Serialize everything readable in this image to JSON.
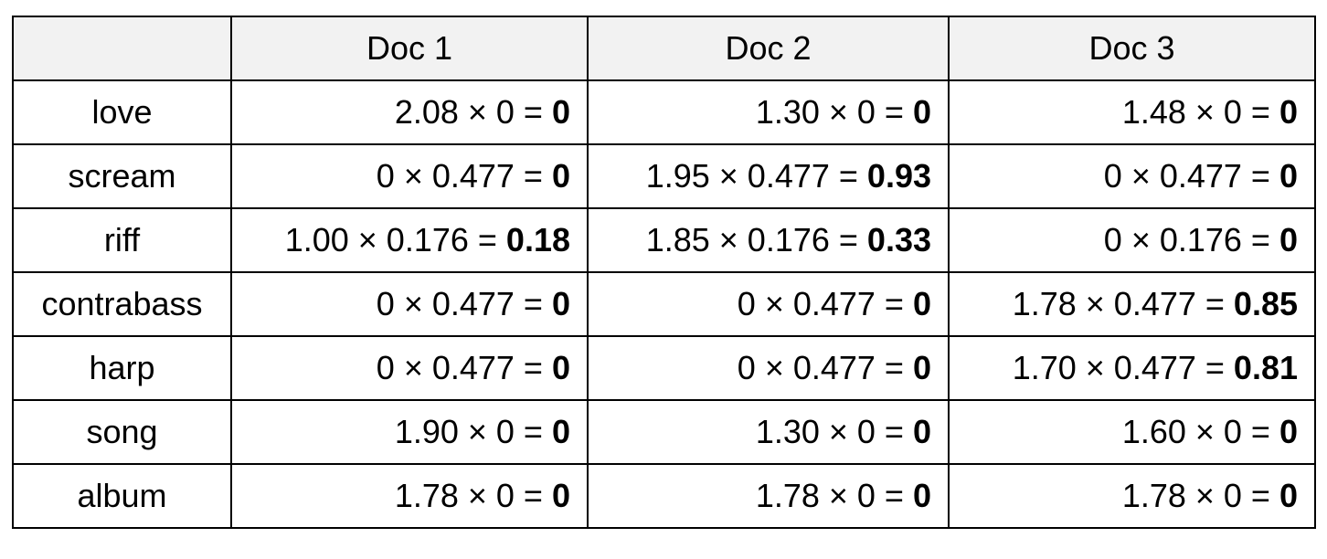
{
  "table": {
    "corner": "",
    "columns": [
      "Doc 1",
      "Doc 2",
      "Doc 3"
    ],
    "rows": [
      {
        "term": "love",
        "cells": [
          {
            "expr": "2.08 × 0 = ",
            "result": "0"
          },
          {
            "expr": "1.30 × 0 = ",
            "result": "0"
          },
          {
            "expr": "1.48 × 0 = ",
            "result": "0"
          }
        ]
      },
      {
        "term": "scream",
        "cells": [
          {
            "expr": "0 × 0.477 = ",
            "result": "0"
          },
          {
            "expr": "1.95 × 0.477 = ",
            "result": "0.93"
          },
          {
            "expr": "0 × 0.477 = ",
            "result": "0"
          }
        ]
      },
      {
        "term": "riff",
        "cells": [
          {
            "expr": "1.00 × 0.176 = ",
            "result": "0.18"
          },
          {
            "expr": "1.85 × 0.176 = ",
            "result": "0.33"
          },
          {
            "expr": "0 × 0.176 = ",
            "result": "0"
          }
        ]
      },
      {
        "term": "contrabass",
        "cells": [
          {
            "expr": "0 × 0.477 = ",
            "result": "0"
          },
          {
            "expr": "0 × 0.477 = ",
            "result": "0"
          },
          {
            "expr": "1.78 × 0.477 = ",
            "result": "0.85"
          }
        ]
      },
      {
        "term": "harp",
        "cells": [
          {
            "expr": "0 × 0.477 = ",
            "result": "0"
          },
          {
            "expr": "0 × 0.477 = ",
            "result": "0"
          },
          {
            "expr": "1.70 × 0.477 = ",
            "result": "0.81"
          }
        ]
      },
      {
        "term": "song",
        "cells": [
          {
            "expr": "1.90 × 0 = ",
            "result": "0"
          },
          {
            "expr": "1.30 × 0 = ",
            "result": "0"
          },
          {
            "expr": "1.60 × 0 = ",
            "result": "0"
          }
        ]
      },
      {
        "term": "album",
        "cells": [
          {
            "expr": "1.78 × 0 = ",
            "result": "0"
          },
          {
            "expr": "1.78 × 0 = ",
            "result": "0"
          },
          {
            "expr": "1.78 × 0 = ",
            "result": "0"
          }
        ]
      }
    ]
  },
  "colors": {
    "header_background": "#f2f2f2",
    "border": "#000000",
    "text": "#000000"
  }
}
